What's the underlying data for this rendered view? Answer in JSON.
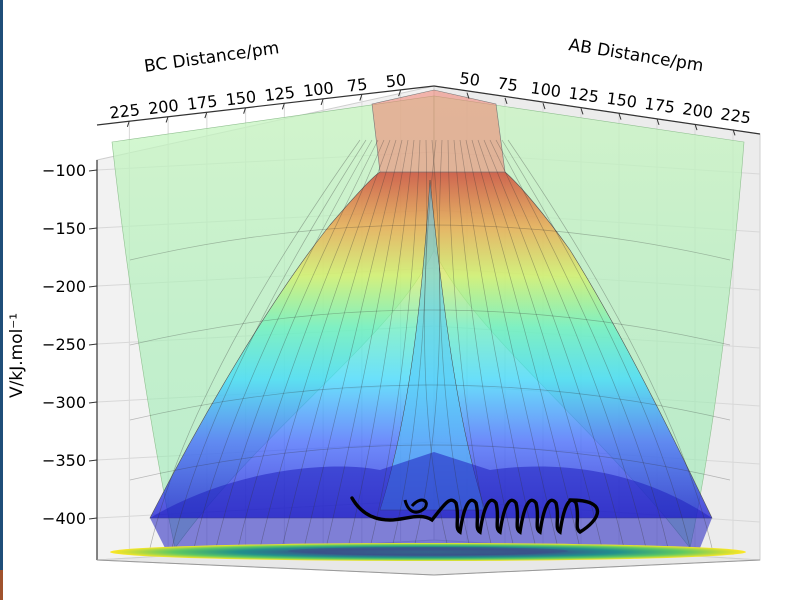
{
  "chart_data": {
    "type": "surface",
    "title": "",
    "xlabel": "AB Distance/pm",
    "ylabel": "BC Distance/pm",
    "zlabel": "V/kJ.mol⁻¹",
    "ab_ticks": [
      "50",
      "75",
      "100",
      "125",
      "150",
      "175",
      "200",
      "225"
    ],
    "bc_ticks": [
      "225",
      "200",
      "175",
      "150",
      "125",
      "100",
      "75",
      "50"
    ],
    "z_ticks": [
      "−100",
      "−150",
      "−200",
      "−250",
      "−300",
      "−350",
      "−400"
    ],
    "z_values": [
      -100,
      -150,
      -200,
      -250,
      -300,
      -350,
      -400
    ],
    "zlim": [
      -440,
      -75
    ],
    "colormap_surface": "jet",
    "colormap_floor_contour": "viridis",
    "trajectory_color": "#000000",
    "grid": true,
    "legend": "none"
  }
}
